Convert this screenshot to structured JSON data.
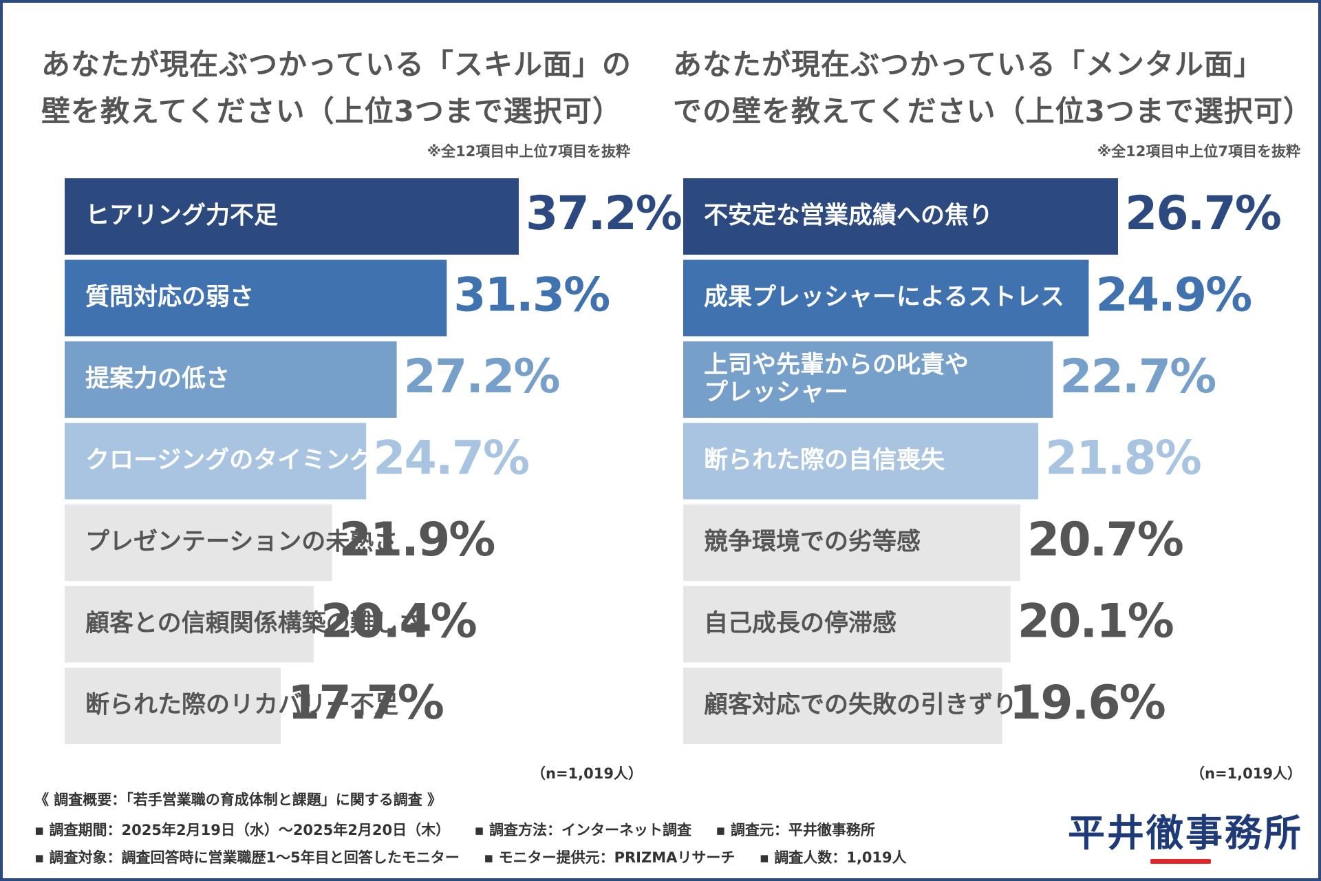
{
  "chart_data": [
    {
      "type": "bar",
      "orientation": "horizontal",
      "title": "あなたが現在ぶつかっている「スキル面」の壁を教えてください（上位3つまで選択可）",
      "title_lines": [
        "あなたが現在ぶつかっている「スキル面」の",
        "壁を教えてください（上位3つまで選択可）"
      ],
      "note": "※全12項目中上位7項目を抜粋",
      "categories": [
        "ヒアリング力不足",
        "質問対応の弱さ",
        "提案力の低さ",
        "クロージングのタイミングミス",
        "プレゼンテーションの未熟さ",
        "顧客との信頼関係構築の難しさ",
        "断られた際のリカバリー不足"
      ],
      "values": [
        37.2,
        31.3,
        27.2,
        24.7,
        21.9,
        20.4,
        17.7
      ],
      "value_labels": [
        "37.2%",
        "31.3%",
        "27.2%",
        "24.7%",
        "21.9%",
        "20.4%",
        "17.7%"
      ],
      "n_label": "（n=1,019人）"
    },
    {
      "type": "bar",
      "orientation": "horizontal",
      "title": "あなたが現在ぶつかっている「メンタル面」での壁を教えてください（上位3つまで選択可）",
      "title_lines": [
        "あなたが現在ぶつかっている「メンタル面」",
        "での壁を教えてください（上位3つまで選択可）"
      ],
      "note": "※全12項目中上位7項目を抜粋",
      "categories": [
        "不安定な営業成績への焦り",
        "成果プレッシャーによるストレス",
        "上司や先輩からの叱責やプレッシャー",
        "断られた際の自信喪失",
        "競争環境での劣等感",
        "自己成長の停滞感",
        "顧客対応での失敗の引きずり"
      ],
      "category_lines": [
        [
          "不安定な営業成績への焦り"
        ],
        [
          "成果プレッシャーによるストレス"
        ],
        [
          "上司や先輩からの叱責や",
          "プレッシャー"
        ],
        [
          "断られた際の自信喪失"
        ],
        [
          "競争環境での劣等感"
        ],
        [
          "自己成長の停滞感"
        ],
        [
          "顧客対応での失敗の引きずり"
        ]
      ],
      "values": [
        26.7,
        24.9,
        22.7,
        21.8,
        20.7,
        20.1,
        19.6
      ],
      "value_labels": [
        "26.7%",
        "24.9%",
        "22.7%",
        "21.8%",
        "20.7%",
        "20.1%",
        "19.6%"
      ],
      "n_label": "（n=1,019人）"
    }
  ],
  "colors": {
    "rank1": "#2c4a80",
    "rank2": "#4172b0",
    "rank3": "#76a0c9",
    "rank4": "#a9c4e0",
    "rest": "#e6e6e6",
    "label_dark": "#555555",
    "label_light": "#ffffff",
    "frame": "#2c4a80",
    "logo_accent": "#e3262a"
  },
  "survey": {
    "heading": "《 調査概要：「若手営業職の育成体制と課題」に関する調査 》",
    "line1": [
      "▪ 調査期間：2025年2月19日（水）〜2025年2月20日（木）",
      "▪ 調査方法：インターネット調査",
      "▪ 調査元：平井徹事務所"
    ],
    "line2": [
      "▪ 調査対象：調査回答時に営業職歴1〜5年目と回答したモニター",
      "▪ モニター提供元：PRIZMAリサーチ",
      "▪ 調査人数：1,019人"
    ]
  },
  "logo": "平井徹事務所"
}
